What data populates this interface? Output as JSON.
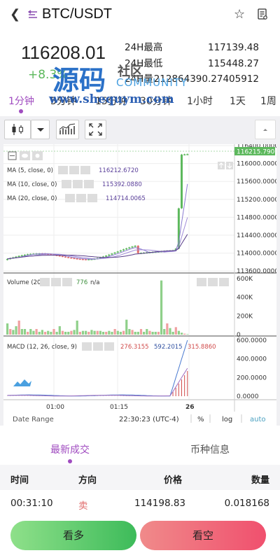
{
  "header": {
    "back_icon": "back-chevron-icon",
    "title": "BTC/USDT"
  },
  "ticker": {
    "price": "116208.01",
    "change": "+8.3%",
    "stats": [
      {
        "label": "24H最高",
        "value": "117139.48"
      },
      {
        "label": "24H最低",
        "value": "115448.27"
      },
      {
        "label": "24H量",
        "value": "212864390.27405912"
      }
    ]
  },
  "watermark": {
    "cn": "源码",
    "she": "社区",
    "com": "COMMUNITY",
    "url": "www.shequym.com"
  },
  "intervals": [
    {
      "label": "1分钟",
      "active": true
    },
    {
      "label": "5分钟"
    },
    {
      "label": "15分钟"
    },
    {
      "label": "30分钟"
    },
    {
      "label": "1小时"
    },
    {
      "label": "1天"
    },
    {
      "label": "1周"
    }
  ],
  "chart": {
    "price_axis": [
      "116400.0000",
      "116000.0000",
      "115600.0000",
      "115200.0000",
      "114800.0000",
      "114400.0000",
      "114000.0000",
      "113600.0000"
    ],
    "last_price": "116215.7900",
    "ma": [
      {
        "label": "MA (5, close, 0)",
        "value": "116212.6720"
      },
      {
        "label": "MA (10, close, 0)",
        "value": "115392.0880"
      },
      {
        "label": "MA (20, close, 0)",
        "value": "114714.0065"
      }
    ],
    "volume_label": "Volume (20)",
    "volume_value": "776",
    "volume_na": "n/a",
    "volume_axis": [
      "600K",
      "400K",
      "200K",
      "0"
    ],
    "macd_label": "MACD (12, 26, close, 9)",
    "macd_values": [
      "276.3155",
      "592.2015",
      "315.8860"
    ],
    "macd_axis": [
      "600.0000",
      "400.0000",
      "200.0000",
      "0.0000"
    ],
    "time_axis": [
      "01:00",
      "01:15",
      "26"
    ],
    "footer": {
      "range_label": "Date Range",
      "time": "22:30:23 (UTC-4)",
      "pct": "%",
      "log": "log",
      "auto": "auto"
    }
  },
  "bottom_tabs": [
    {
      "label": "最新成交",
      "active": true
    },
    {
      "label": "币种信息"
    }
  ],
  "trades": {
    "headers": [
      "时间",
      "方向",
      "价格",
      "数量"
    ],
    "rows": [
      {
        "time": "00:31:10",
        "side": "卖",
        "price": "114198.83",
        "qty": "0.018168"
      }
    ]
  },
  "actions": {
    "long": "看多",
    "short": "看空"
  },
  "colors": {
    "accent": "#a04cc0",
    "up": "#5cb85c",
    "down": "#e06c6c"
  }
}
